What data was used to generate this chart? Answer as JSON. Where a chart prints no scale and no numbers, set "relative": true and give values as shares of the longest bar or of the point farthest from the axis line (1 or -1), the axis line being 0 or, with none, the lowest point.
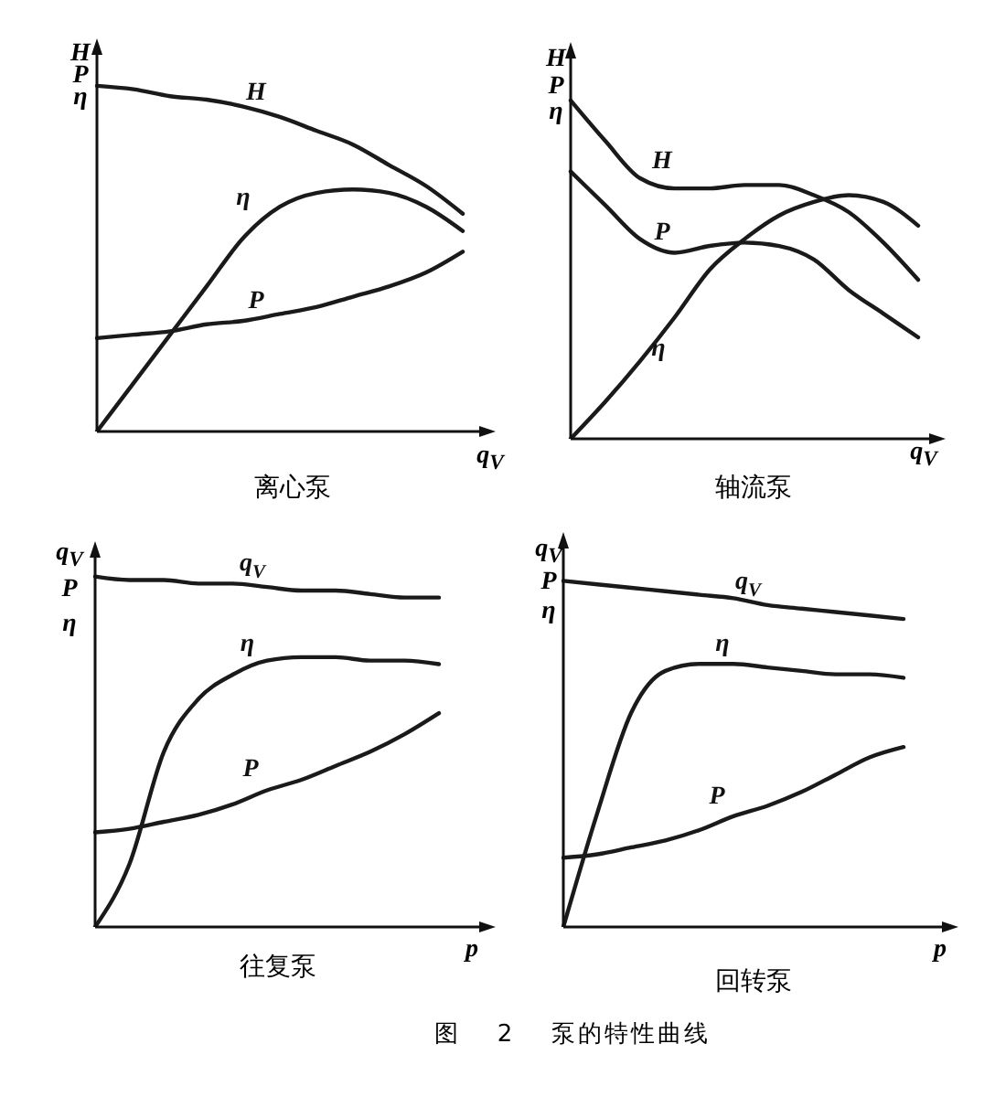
{
  "chart_data": [
    {
      "type": "line",
      "title": "离心泵",
      "xlabel": "q$_{V}$",
      "ylabel": "H P η",
      "relative": true,
      "categories": [
        null,
        null,
        null,
        null,
        null,
        null,
        null,
        null,
        null,
        null,
        null
      ],
      "series": [
        {
          "name": "H",
          "color": "#1a1a1a",
          "values": [
            1,
            0.99,
            0.97,
            0.96,
            0.94,
            0.91,
            0.87,
            0.83,
            0.77,
            0.71,
            0.63
          ]
        },
        {
          "name": "η",
          "color": "#1a1a1a",
          "values": [
            0,
            0.14,
            0.28,
            0.42,
            0.56,
            0.65,
            0.69,
            0.7,
            0.69,
            0.65,
            0.58
          ]
        },
        {
          "name": "P",
          "color": "#1a1a1a",
          "values": [
            0.27,
            0.28,
            0.29,
            0.31,
            0.32,
            0.34,
            0.36,
            0.39,
            0.42,
            0.46,
            0.52
          ]
        }
      ]
    },
    {
      "type": "line",
      "title": "轴流泵",
      "xlabel": "q$_{V}$",
      "ylabel": "H P η",
      "relative": true,
      "categories": [
        null,
        null,
        null,
        null,
        null,
        null,
        null,
        null,
        null,
        null,
        null
      ],
      "series": [
        {
          "name": "H",
          "color": "#1a1a1a",
          "values": [
            1,
            0.88,
            0.77,
            0.74,
            0.74,
            0.75,
            0.75,
            0.72,
            0.67,
            0.58,
            0.47
          ]
        },
        {
          "name": "P",
          "color": "#1a1a1a",
          "values": [
            0.79,
            0.69,
            0.59,
            0.55,
            0.57,
            0.58,
            0.57,
            0.53,
            0.44,
            0.37,
            0.3
          ]
        },
        {
          "name": "η",
          "color": "#1a1a1a",
          "values": [
            0,
            0.11,
            0.23,
            0.36,
            0.5,
            0.59,
            0.66,
            0.7,
            0.72,
            0.7,
            0.63
          ]
        }
      ]
    },
    {
      "type": "line",
      "title": "往复泵",
      "xlabel": "p",
      "ylabel": "q$_{V}$ P η",
      "relative": true,
      "categories": [
        null,
        null,
        null,
        null,
        null,
        null,
        null,
        null,
        null,
        null,
        null
      ],
      "series": [
        {
          "name": "q$_{V}$",
          "color": "#1a1a1a",
          "values": [
            1,
            0.99,
            0.99,
            0.98,
            0.98,
            0.97,
            0.96,
            0.96,
            0.95,
            0.94,
            0.94
          ]
        },
        {
          "name": "η",
          "color": "#1a1a1a",
          "values": [
            0,
            0.18,
            0.5,
            0.65,
            0.72,
            0.76,
            0.77,
            0.77,
            0.76,
            0.76,
            0.75
          ]
        },
        {
          "name": "P",
          "color": "#1a1a1a",
          "values": [
            0.27,
            0.28,
            0.3,
            0.32,
            0.35,
            0.39,
            0.42,
            0.46,
            0.5,
            0.55,
            0.61
          ]
        }
      ]
    },
    {
      "type": "line",
      "title": "回转泵",
      "xlabel": "p",
      "ylabel": "q$_{V}$ P η",
      "relative": true,
      "categories": [
        null,
        null,
        null,
        null,
        null,
        null,
        null,
        null,
        null,
        null,
        null
      ],
      "annotations": [
        "图 2 泵的特性曲线"
      ],
      "series": [
        {
          "name": "q$_{V}$",
          "color": "#1a1a1a",
          "values": [
            1,
            0.99,
            0.98,
            0.97,
            0.96,
            0.95,
            0.93,
            0.92,
            0.91,
            0.9,
            0.89
          ]
        },
        {
          "name": "η",
          "color": "#1a1a1a",
          "values": [
            0,
            0.33,
            0.62,
            0.74,
            0.76,
            0.76,
            0.75,
            0.74,
            0.73,
            0.73,
            0.72
          ]
        },
        {
          "name": "P",
          "color": "#1a1a1a",
          "values": [
            0.2,
            0.21,
            0.23,
            0.25,
            0.28,
            0.32,
            0.35,
            0.39,
            0.44,
            0.49,
            0.52
          ]
        }
      ]
    }
  ]
}
